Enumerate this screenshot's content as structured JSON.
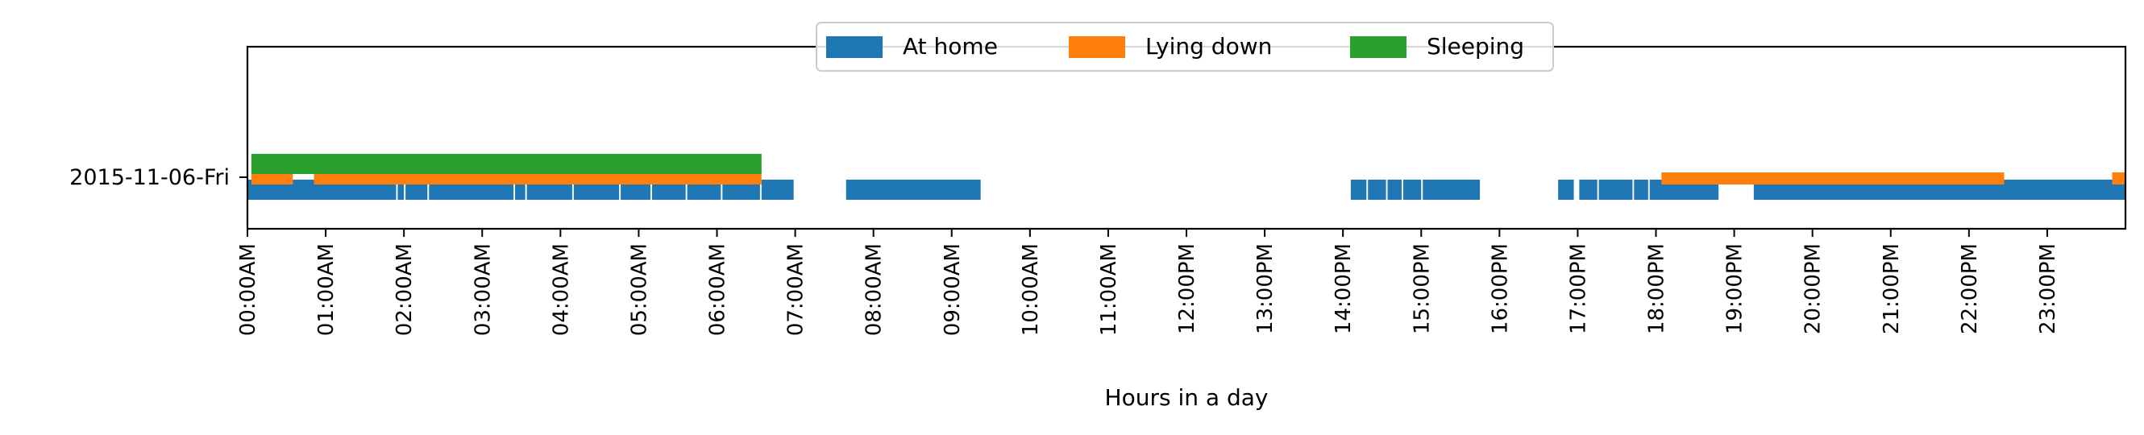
{
  "chart_data": {
    "type": "timeline",
    "xlabel": "Hours in a day",
    "xlim": [
      0,
      24
    ],
    "categories": [
      "2015-11-06-Fri"
    ],
    "x_ticks": [
      "00:00AM",
      "01:00AM",
      "02:00AM",
      "03:00AM",
      "04:00AM",
      "05:00AM",
      "06:00AM",
      "07:00AM",
      "08:00AM",
      "09:00AM",
      "10:00AM",
      "11:00AM",
      "12:00PM",
      "13:00PM",
      "14:00PM",
      "15:00PM",
      "16:00PM",
      "17:00PM",
      "18:00PM",
      "19:00PM",
      "20:00PM",
      "21:00PM",
      "22:00PM",
      "23:00PM"
    ],
    "legend_position": "top-center",
    "series": [
      {
        "name": "At home",
        "color": "#1f77b4",
        "intervals": [
          [
            0.0,
            1.9
          ],
          [
            1.92,
            2.0
          ],
          [
            2.02,
            2.3
          ],
          [
            2.32,
            3.4
          ],
          [
            3.42,
            3.55
          ],
          [
            3.57,
            4.15
          ],
          [
            4.17,
            4.75
          ],
          [
            4.77,
            5.15
          ],
          [
            5.17,
            5.6
          ],
          [
            5.62,
            6.05
          ],
          [
            6.07,
            6.55
          ],
          [
            6.57,
            6.98
          ],
          [
            7.65,
            9.37
          ],
          [
            14.1,
            14.3
          ],
          [
            14.32,
            14.55
          ],
          [
            14.57,
            14.75
          ],
          [
            14.77,
            15.0
          ],
          [
            15.02,
            15.75
          ],
          [
            16.75,
            16.95
          ],
          [
            17.02,
            17.25
          ],
          [
            17.27,
            17.7
          ],
          [
            17.72,
            17.9
          ],
          [
            17.92,
            18.8
          ],
          [
            19.25,
            24.0
          ]
        ]
      },
      {
        "name": "Lying down",
        "color": "#ff7f0e",
        "intervals": [
          [
            0.05,
            0.58
          ],
          [
            0.85,
            6.57
          ],
          [
            18.07,
            22.45
          ],
          [
            23.83,
            24.0
          ]
        ]
      },
      {
        "name": "Sleeping",
        "color": "#2ca02c",
        "intervals": [
          [
            0.05,
            6.57
          ]
        ]
      }
    ]
  }
}
